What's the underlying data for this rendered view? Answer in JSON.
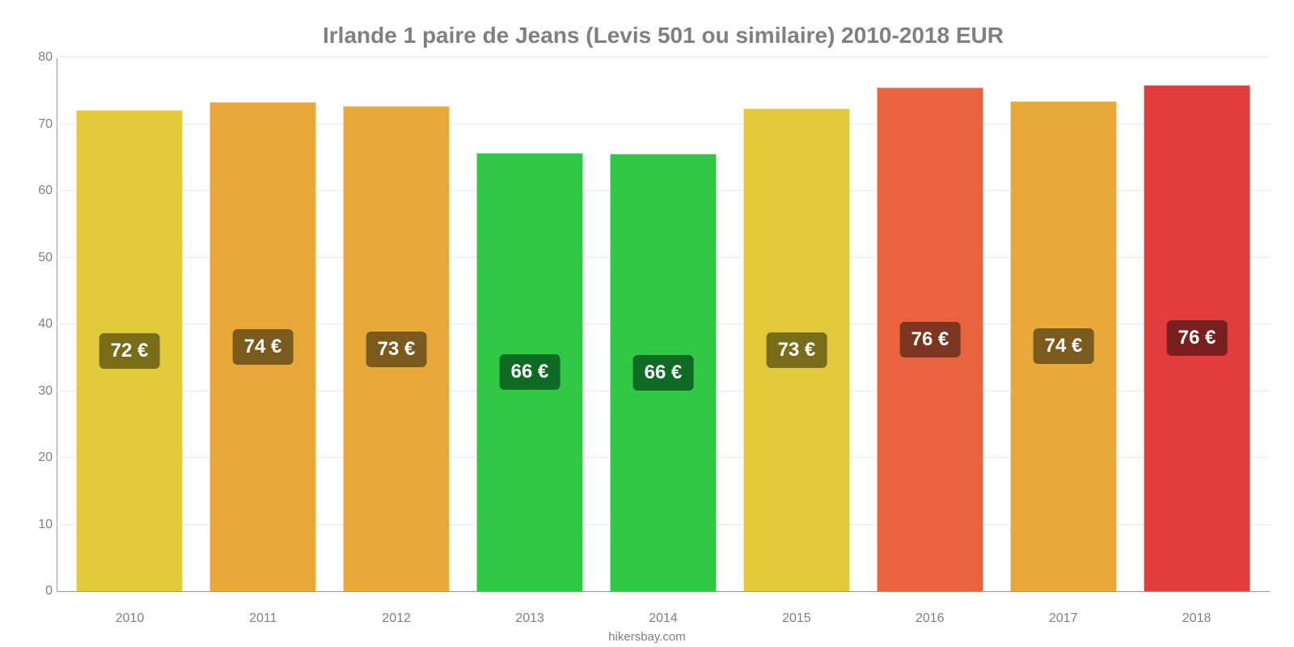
{
  "price_chart": {
    "type": "bar",
    "title": "Irlande 1 paire de Jeans (Levis 501 ou similaire) 2010-2018 EUR",
    "title_color": "#808080",
    "title_fontsize": 28,
    "background_color": "#ffffff",
    "grid_color": "#e9e9e9",
    "axis_color": "#999999",
    "tick_color": "#808080",
    "tick_fontsize": 16,
    "bar_label_fontsize": 24,
    "bar_label_text_color": "#ffffff",
    "bar_width_fraction": 0.8,
    "ylim": [
      0,
      80
    ],
    "yticks": [
      0,
      10,
      20,
      30,
      40,
      50,
      60,
      70,
      80
    ],
    "categories": [
      "2010",
      "2011",
      "2012",
      "2013",
      "2014",
      "2015",
      "2016",
      "2017",
      "2018"
    ],
    "values": [
      72.2,
      73.5,
      72.8,
      65.8,
      65.7,
      72.5,
      75.6,
      73.6,
      76.0
    ],
    "value_labels": [
      "72 €",
      "74 €",
      "73 €",
      "66 €",
      "66 €",
      "73 €",
      "76 €",
      "74 €",
      "76 €"
    ],
    "bar_colors": [
      "#e2c93a",
      "#e9a93a",
      "#e9a93a",
      "#30c845",
      "#30c845",
      "#e2c93a",
      "#e8633e",
      "#e9a93a",
      "#e23c3c"
    ],
    "label_bg_colors": [
      "#7a6d1a",
      "#7a5a1d",
      "#7a5a1d",
      "#0f6b24",
      "#0f6b24",
      "#7a6d1a",
      "#7c3520",
      "#7a5a1d",
      "#7a1f1f"
    ],
    "source_text": "hikersbay.com",
    "source_color": "#808080",
    "source_fontsize": 15
  }
}
